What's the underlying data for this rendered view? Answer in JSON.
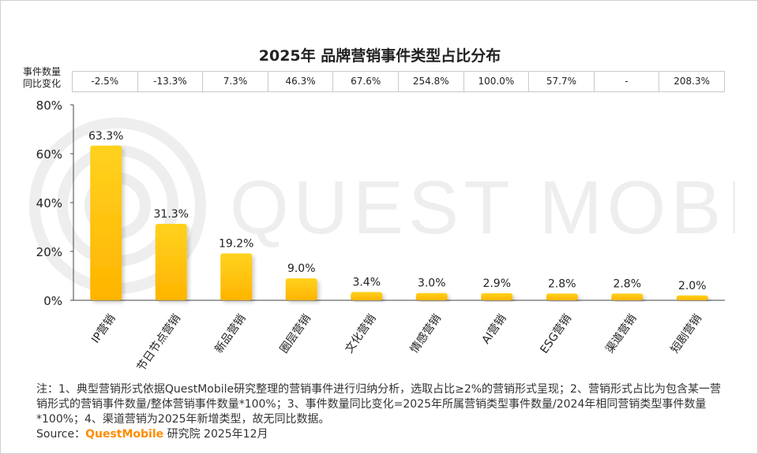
{
  "title": "2025年 品牌营销事件类型占比分布",
  "change_row": {
    "label_line1": "事件数量",
    "label_line2": "同比变化",
    "values": [
      "-2.5%",
      "-13.3%",
      "7.3%",
      "46.3%",
      "67.6%",
      "254.8%",
      "100.0%",
      "57.7%",
      "-",
      "208.3%"
    ]
  },
  "chart_data": {
    "type": "bar",
    "title": "2025年 品牌营销事件类型占比分布",
    "categories": [
      "IP营销",
      "节日节点营销",
      "新品营销",
      "圈层营销",
      "文化营销",
      "情感营销",
      "AI营销",
      "ESG营销",
      "渠道营销",
      "短剧营销"
    ],
    "values": [
      63.3,
      31.3,
      19.2,
      9.0,
      3.4,
      3.0,
      2.9,
      2.8,
      2.8,
      2.0
    ],
    "value_labels": [
      "63.3%",
      "31.3%",
      "19.2%",
      "9.0%",
      "3.4%",
      "3.0%",
      "2.9%",
      "2.8%",
      "2.8%",
      "2.0%"
    ],
    "yticks": [
      0,
      20,
      40,
      60,
      80
    ],
    "ytick_labels": [
      "0%",
      "20%",
      "40%",
      "60%",
      "80%"
    ],
    "ylim": [
      0,
      80
    ],
    "xlabel": "",
    "ylabel": "",
    "grid": false
  },
  "watermark_text": "QUEST MOBILE",
  "notes": "注：1、典型营销形式依据QuestMobile研究整理的营销事件进行归纳分析，选取占比≥2%的营销形式呈现；2、营销形式占比为包含某一营销形式的营销事件数量/整体营销事件数量*100%；3、事件数量同比变化=2025年所属营销类型事件数量/2024年相同营销类型事件数量*100%；4、渠道营销为2025年新增类型，故无同比数据。",
  "source": {
    "prefix": "Source：",
    "brand": "QuestMobile",
    "suffix": " 研究院 2025年12月"
  },
  "colors": {
    "bar_top": "#ffd21f",
    "bar_bottom": "#ffb400",
    "axis": "#444444",
    "brand": "#ff8c00"
  }
}
